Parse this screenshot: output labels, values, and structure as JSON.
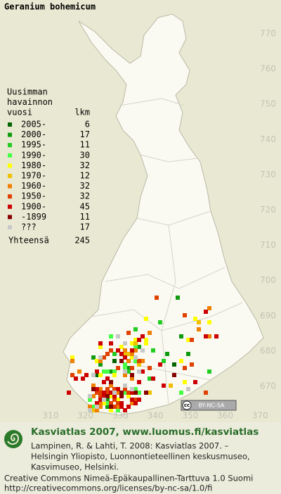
{
  "title": "Geranium bohemicum",
  "legend": {
    "heading": [
      "Uusimman",
      "havainnon",
      "vuosi"
    ],
    "count_heading": "lkm",
    "entries": [
      {
        "label": "2005-",
        "count": 6,
        "color": "#006400"
      },
      {
        "label": "2000-",
        "count": 17,
        "color": "#109a10"
      },
      {
        "label": "1995-",
        "count": 11,
        "color": "#22cc22"
      },
      {
        "label": "1990-",
        "count": 30,
        "color": "#44ff44"
      },
      {
        "label": "1980-",
        "count": 32,
        "color": "#ffff00"
      },
      {
        "label": "1970-",
        "count": 12,
        "color": "#f0c000"
      },
      {
        "label": "1960-",
        "count": 32,
        "color": "#f08000"
      },
      {
        "label": "1950-",
        "count": 32,
        "color": "#e04000"
      },
      {
        "label": "1900-",
        "count": 45,
        "color": "#cc0000"
      },
      {
        "label": "-1899",
        "count": 11,
        "color": "#880000"
      },
      {
        "label": "???",
        "count": 17,
        "color": "#c8c8c8"
      }
    ],
    "total_label": "Yhteensä",
    "total": 245
  },
  "map": {
    "northing_labels": [
      770,
      760,
      750,
      740,
      730,
      720,
      710,
      700,
      690,
      680,
      670
    ],
    "easting_labels": [
      310,
      320,
      330,
      340,
      350,
      360,
      370
    ],
    "cc_mark": "cc",
    "license_badge": "BY-NC-SA"
  },
  "footer": {
    "site": "Kasviatlas 2007, www.luomus.fi/kasviatlas",
    "citation": [
      "Lampinen, R. & Lahti, T. 2008: Kasviatlas 2007. –",
      "Helsingin Yliopisto, Luonnontieteellinen keskusmuseo,",
      "Kasvimuseo, Helsinki."
    ],
    "license": [
      "Creative Commons Nimeä-Epäkaupallinen-Tarttuva 1.0 Suomi",
      "http://creativecommons.org/licenses/by-nc-sa/1.0/fi"
    ]
  }
}
